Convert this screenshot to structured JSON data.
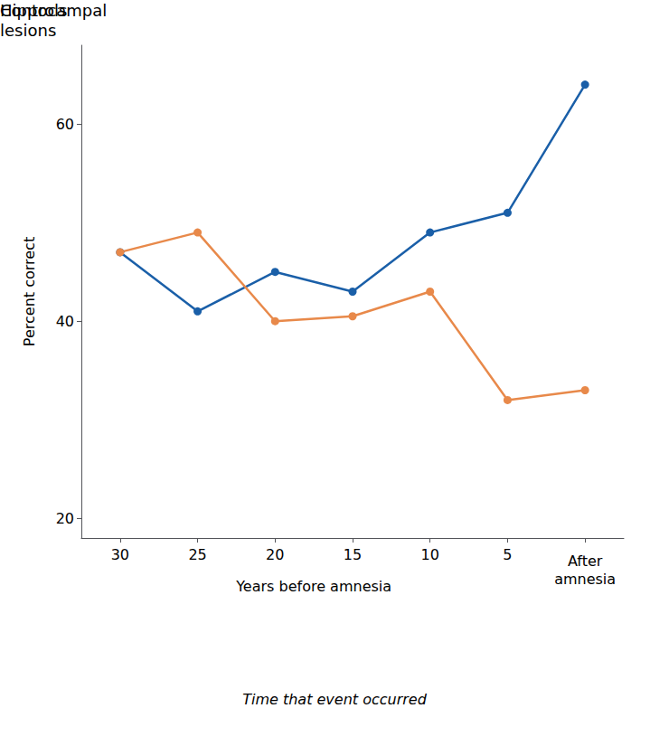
{
  "chart_data": {
    "type": "line",
    "categories": [
      "30",
      "25",
      "20",
      "15",
      "10",
      "5",
      null
    ],
    "series": [
      {
        "name": "Controls",
        "color": "#1a5fa8",
        "values": [
          47,
          41,
          45,
          43,
          49,
          51,
          64
        ]
      },
      {
        "name": "Hippocampal\nlesions",
        "color": "#e8894a",
        "values": [
          47,
          49,
          40,
          40.5,
          43,
          32,
          33
        ]
      }
    ],
    "ylim": [
      18,
      68
    ],
    "yticks": [
      20,
      40,
      60
    ],
    "ylabel": "Percent correct",
    "xlabel": "Time that event occurred",
    "x_group_labels": [
      "Years before amnesia",
      "After\namnesia"
    ],
    "marker": "circle",
    "grid": false
  }
}
